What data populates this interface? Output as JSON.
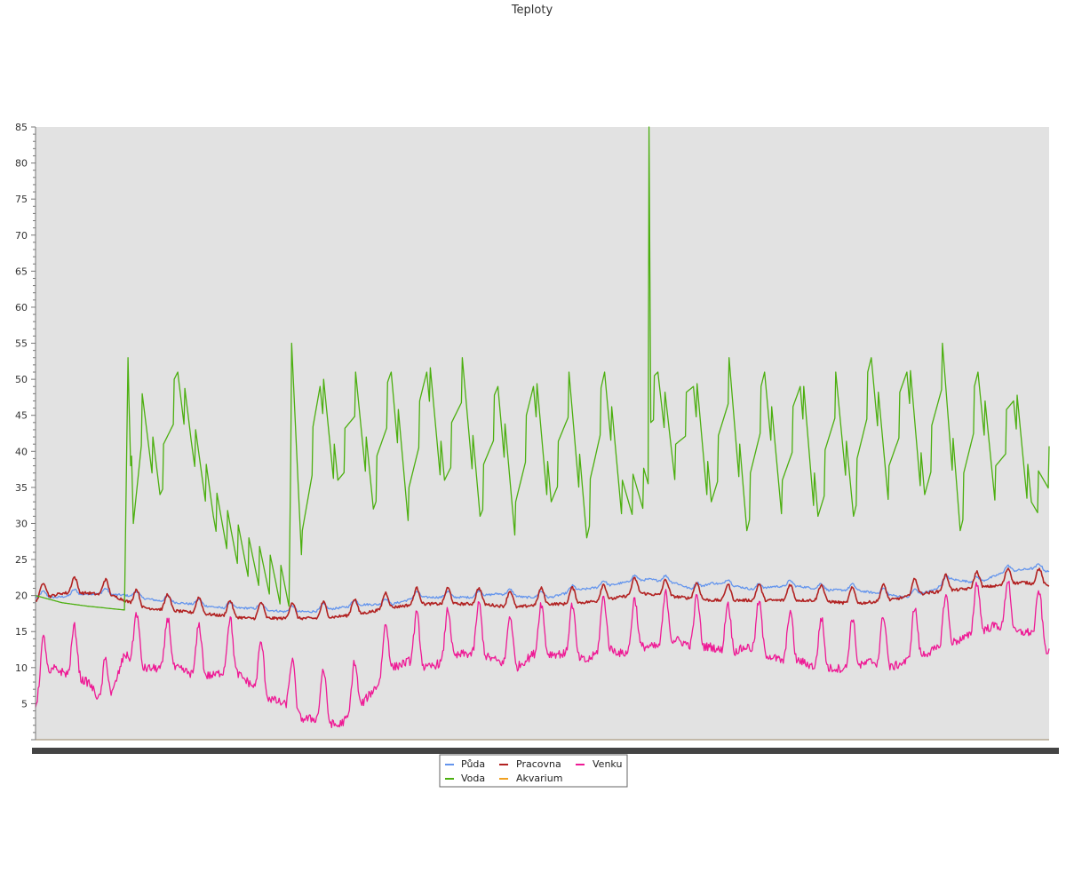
{
  "chart_data": {
    "type": "line",
    "title": "Teploty",
    "xlabel": "",
    "ylabel": "",
    "ylim": [
      0,
      85
    ],
    "y_ticks": [
      5,
      10,
      15,
      20,
      25,
      30,
      35,
      40,
      45,
      50,
      55,
      60,
      65,
      70,
      75,
      80,
      85
    ],
    "y_tick_labels": [
      "5",
      "10",
      "15",
      "20",
      "25",
      "30",
      "35",
      "40",
      "45",
      "50",
      "55",
      "60",
      "65",
      "70",
      "75",
      "80",
      "85"
    ],
    "grid": false,
    "plot_background": "#e2e2e2",
    "legend_position": "bottom-center",
    "x_count": 1141,
    "series": [
      {
        "name": "Půda",
        "color": "#6495ed",
        "points": [
          [
            0,
            20
          ],
          [
            25,
            20
          ],
          [
            60,
            20.5
          ],
          [
            100,
            20.3
          ],
          [
            140,
            19.5
          ],
          [
            180,
            19
          ],
          [
            210,
            18.5
          ],
          [
            240,
            18.5
          ],
          [
            280,
            18
          ],
          [
            310,
            18
          ],
          [
            340,
            18.5
          ],
          [
            370,
            19
          ],
          [
            400,
            19
          ],
          [
            430,
            20
          ],
          [
            460,
            20
          ],
          [
            490,
            20
          ],
          [
            520,
            20.5
          ],
          [
            550,
            20
          ],
          [
            580,
            20
          ],
          [
            610,
            21
          ],
          [
            640,
            21.5
          ],
          [
            660,
            22
          ],
          [
            690,
            22.5
          ],
          [
            720,
            22
          ],
          [
            740,
            21
          ],
          [
            760,
            22
          ],
          [
            790,
            21.5
          ],
          [
            810,
            21
          ],
          [
            830,
            21.5
          ],
          [
            860,
            21.5
          ],
          [
            890,
            21
          ],
          [
            920,
            21
          ],
          [
            950,
            20.5
          ],
          [
            980,
            20
          ],
          [
            1010,
            21
          ],
          [
            1030,
            22.5
          ],
          [
            1060,
            22
          ],
          [
            1090,
            23.5
          ],
          [
            1120,
            24
          ],
          [
            1141,
            23.5
          ]
        ],
        "wave_amplitude": 0.8,
        "wave_period": 35,
        "noise": 0.15
      },
      {
        "name": "Pracovna",
        "color": "#b22222",
        "points": [
          [
            0,
            20
          ],
          [
            30,
            21
          ],
          [
            60,
            21
          ],
          [
            90,
            20.5
          ],
          [
            120,
            19
          ],
          [
            160,
            18.5
          ],
          [
            200,
            18
          ],
          [
            240,
            17.5
          ],
          [
            280,
            17.5
          ],
          [
            320,
            17.5
          ],
          [
            360,
            18
          ],
          [
            400,
            19
          ],
          [
            430,
            19.5
          ],
          [
            460,
            19.5
          ],
          [
            500,
            19.5
          ],
          [
            540,
            19
          ],
          [
            570,
            19.5
          ],
          [
            600,
            19.5
          ],
          [
            640,
            20
          ],
          [
            680,
            21
          ],
          [
            720,
            20.5
          ],
          [
            760,
            20
          ],
          [
            800,
            20
          ],
          [
            840,
            20
          ],
          [
            880,
            20
          ],
          [
            920,
            19.5
          ],
          [
            960,
            20
          ],
          [
            1000,
            21
          ],
          [
            1040,
            21.5
          ],
          [
            1080,
            22
          ],
          [
            1110,
            22.5
          ],
          [
            1141,
            22
          ]
        ],
        "wave_amplitude": 2.2,
        "wave_period": 35,
        "noise": 0.2
      },
      {
        "name": "Voda",
        "color": "#4caf10",
        "points": [
          [
            0,
            20
          ],
          [
            30,
            19
          ],
          [
            60,
            18.5
          ],
          [
            100,
            18
          ],
          [
            104,
            53
          ],
          [
            110,
            28
          ],
          [
            120,
            45
          ],
          [
            140,
            35
          ],
          [
            160,
            50
          ],
          [
            175,
            42
          ],
          [
            200,
            32
          ],
          [
            220,
            28
          ],
          [
            240,
            25
          ],
          [
            270,
            22
          ],
          [
            285,
            20
          ],
          [
            288,
            52
          ],
          [
            300,
            26
          ],
          [
            320,
            50
          ],
          [
            340,
            35
          ],
          [
            360,
            48
          ],
          [
            380,
            33
          ],
          [
            400,
            50
          ],
          [
            420,
            32
          ],
          [
            440,
            52
          ],
          [
            460,
            35
          ],
          [
            480,
            50
          ],
          [
            500,
            32
          ],
          [
            520,
            48
          ],
          [
            540,
            30
          ],
          [
            560,
            50
          ],
          [
            580,
            32
          ],
          [
            600,
            48
          ],
          [
            620,
            29
          ],
          [
            640,
            50
          ],
          [
            660,
            33
          ],
          [
            689,
            35
          ],
          [
            690,
            85
          ],
          [
            692,
            45
          ],
          [
            700,
            50
          ],
          [
            720,
            38
          ],
          [
            740,
            50
          ],
          [
            760,
            32
          ],
          [
            780,
            50
          ],
          [
            800,
            30
          ],
          [
            820,
            50
          ],
          [
            840,
            33
          ],
          [
            860,
            50
          ],
          [
            880,
            30
          ],
          [
            900,
            48
          ],
          [
            920,
            32
          ],
          [
            940,
            52
          ],
          [
            960,
            35
          ],
          [
            980,
            52
          ],
          [
            1000,
            33
          ],
          [
            1020,
            52
          ],
          [
            1040,
            30
          ],
          [
            1060,
            50
          ],
          [
            1080,
            35
          ],
          [
            1100,
            48
          ],
          [
            1120,
            32
          ],
          [
            1141,
            38
          ]
        ],
        "wave_amplitude": 0,
        "wave_period": 35,
        "noise": 0
      },
      {
        "name": "Akvarium",
        "color": "#f0a020",
        "points": [
          [
            0,
            0
          ],
          [
            1141,
            0
          ]
        ],
        "wave_amplitude": 0,
        "wave_period": 35,
        "noise": 0
      },
      {
        "name": "Venku",
        "color": "#ee1a95",
        "points": [
          [
            0,
            7
          ],
          [
            20,
            12
          ],
          [
            40,
            11
          ],
          [
            60,
            10
          ],
          [
            80,
            6
          ],
          [
            100,
            14
          ],
          [
            120,
            12
          ],
          [
            140,
            12
          ],
          [
            160,
            12
          ],
          [
            180,
            11
          ],
          [
            200,
            11
          ],
          [
            220,
            12
          ],
          [
            240,
            10
          ],
          [
            260,
            8
          ],
          [
            280,
            7
          ],
          [
            300,
            5
          ],
          [
            320,
            5
          ],
          [
            340,
            4
          ],
          [
            360,
            6
          ],
          [
            380,
            9
          ],
          [
            400,
            12
          ],
          [
            420,
            13
          ],
          [
            440,
            12
          ],
          [
            460,
            13
          ],
          [
            480,
            14
          ],
          [
            500,
            14
          ],
          [
            520,
            13
          ],
          [
            540,
            12
          ],
          [
            560,
            14
          ],
          [
            580,
            14
          ],
          [
            600,
            14
          ],
          [
            620,
            13
          ],
          [
            640,
            15
          ],
          [
            660,
            14
          ],
          [
            680,
            15
          ],
          [
            700,
            15
          ],
          [
            720,
            16
          ],
          [
            740,
            15
          ],
          [
            760,
            15
          ],
          [
            780,
            14
          ],
          [
            800,
            15
          ],
          [
            820,
            14
          ],
          [
            840,
            13
          ],
          [
            860,
            13
          ],
          [
            880,
            12
          ],
          [
            900,
            12
          ],
          [
            920,
            12
          ],
          [
            940,
            13
          ],
          [
            960,
            12
          ],
          [
            980,
            13
          ],
          [
            1000,
            14
          ],
          [
            1020,
            15
          ],
          [
            1040,
            16
          ],
          [
            1060,
            17
          ],
          [
            1080,
            18
          ],
          [
            1100,
            17
          ],
          [
            1120,
            17
          ],
          [
            1141,
            14
          ]
        ],
        "wave_amplitude": 7,
        "wave_period": 35,
        "noise": 0.6
      }
    ]
  },
  "legend": {
    "items": [
      {
        "label": "Půda",
        "color": "#6495ed"
      },
      {
        "label": "Pracovna",
        "color": "#b22222"
      },
      {
        "label": "Venku",
        "color": "#ee1a95"
      },
      {
        "label": "Voda",
        "color": "#4caf10"
      },
      {
        "label": "Akvarium",
        "color": "#f0a020"
      }
    ]
  }
}
